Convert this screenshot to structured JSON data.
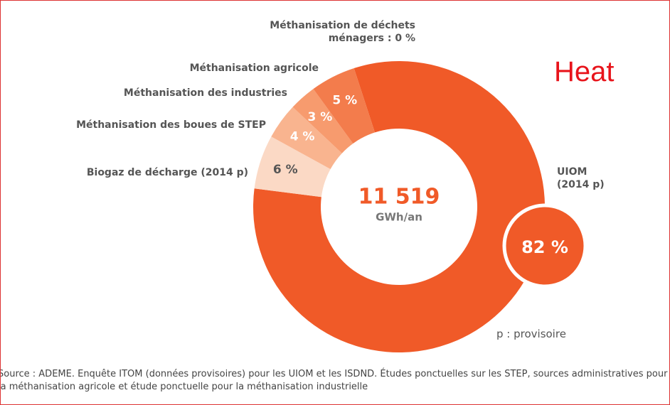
{
  "chart_data": {
    "type": "donut",
    "categories": [
      "UIOM (2014 p)",
      "Biogaz de décharge (2014 p)",
      "Méthanisation des boues de STEP",
      "Méthanisation des industries",
      "Méthanisation agricole",
      "Méthanisation de déchets ménagers :"
    ],
    "values": [
      82,
      6,
      4,
      3,
      5,
      0
    ],
    "value_labels": [
      "82 %",
      "6 %",
      "4 %",
      "3 %",
      "5 %",
      "0 %"
    ],
    "colors": [
      "#f05a28",
      "#fbd9c5",
      "#f9b48f",
      "#f79b6e",
      "#f37c4c",
      "#f26a3a"
    ],
    "total": {
      "value": 11519,
      "label": "11 519"
    },
    "unit": "GWh/an",
    "annotation": "Heat",
    "note": "p : provisoire",
    "source": "Source : ADEME. Enquête ITOM (données provisoires) pour les UIOM et les ISDND. Études ponctuelles sur les STEP, sources administratives pour la méthanisation agricole et étude ponctuelle pour la méthanisation industrielle"
  }
}
